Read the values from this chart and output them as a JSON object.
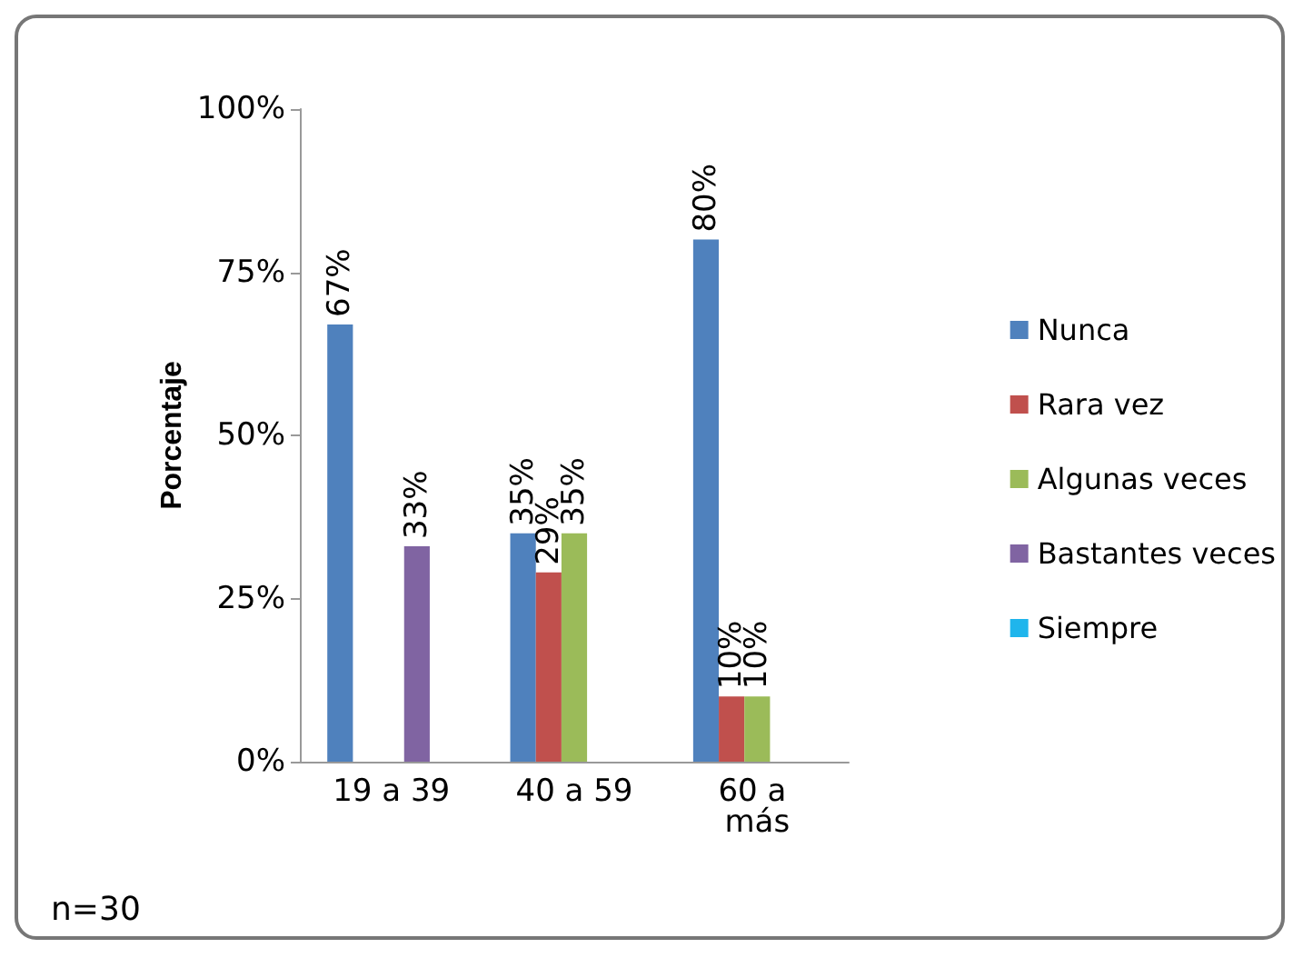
{
  "chart_data": {
    "type": "bar",
    "ylabel": "Porcentaje",
    "categories": [
      "19 a 39",
      "40 a 59",
      "60 a más"
    ],
    "series": [
      {
        "name": "Nunca",
        "color": "#4f81bd",
        "values": [
          67,
          35,
          80
        ],
        "value_labels": [
          "67%",
          "35%",
          "80%"
        ]
      },
      {
        "name": "Rara vez",
        "color": "#c0504d",
        "values": [
          0,
          29,
          10
        ],
        "value_labels": [
          null,
          "29%",
          "10%"
        ]
      },
      {
        "name": "Algunas veces",
        "color": "#9bbb59",
        "values": [
          0,
          35,
          10
        ],
        "value_labels": [
          null,
          "35%",
          "10%"
        ]
      },
      {
        "name": "Bastantes veces",
        "color": "#8064a2",
        "values": [
          33,
          0,
          0
        ],
        "value_labels": [
          "33%",
          null,
          null
        ]
      },
      {
        "name": "Siempre",
        "color": "#1fb5ec",
        "values": [
          0,
          0,
          0
        ]
      }
    ],
    "ylim": [
      0,
      100
    ],
    "yticks": [
      {
        "value": 0,
        "label": "0%"
      },
      {
        "value": 25,
        "label": "25%"
      },
      {
        "value": 50,
        "label": "50%"
      },
      {
        "value": 75,
        "label": "75%"
      },
      {
        "value": 100,
        "label": "100%"
      }
    ],
    "grid": false,
    "legend": "right",
    "annotations": [
      "n=30"
    ]
  }
}
